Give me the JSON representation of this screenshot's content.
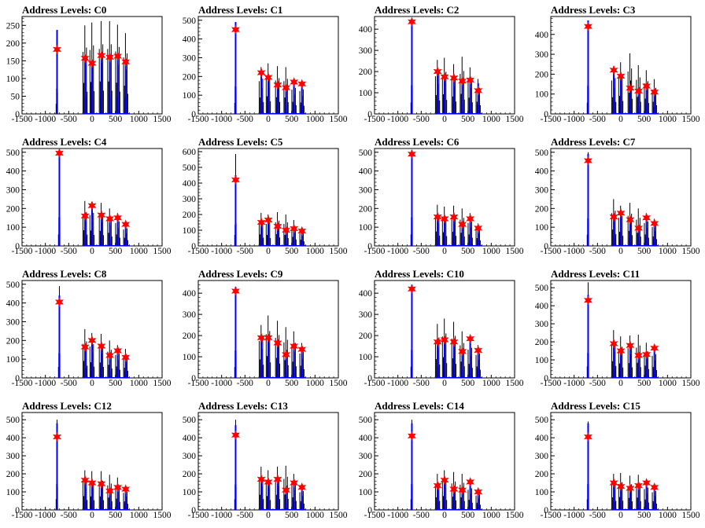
{
  "colors": {
    "raw_histogram": "#000000",
    "filtered_histogram": "#0000ff",
    "peak_marker": "#ff0000"
  },
  "chart_data": [
    {
      "type": "bar",
      "title": "Address Levels: C0",
      "xlim": [
        -1500,
        1500
      ],
      "ylim": [
        0,
        275
      ],
      "xticks": [
        -1500,
        -1000,
        -500,
        0,
        500,
        1000,
        1500
      ],
      "yticks": [
        0,
        50,
        100,
        150,
        200,
        250
      ],
      "peaks": [
        {
          "x": -750,
          "y": 182,
          "raw": 237,
          "blue": 237
        },
        {
          "x": -150,
          "y": 157,
          "raw": 250,
          "blue": 160
        },
        {
          "x": 0,
          "y": 143,
          "raw": 258,
          "blue": 145
        },
        {
          "x": 200,
          "y": 165,
          "raw": 262,
          "blue": 165
        },
        {
          "x": 380,
          "y": 160,
          "raw": 262,
          "blue": 160
        },
        {
          "x": 550,
          "y": 163,
          "raw": 252,
          "blue": 163
        },
        {
          "x": 720,
          "y": 147,
          "raw": 228,
          "blue": 150
        }
      ]
    },
    {
      "type": "bar",
      "title": "Address Levels: C1",
      "xlim": [
        -1500,
        1500
      ],
      "ylim": [
        0,
        520
      ],
      "xticks": [
        -1500,
        -1000,
        -500,
        0,
        500,
        1000,
        1500
      ],
      "yticks": [
        0,
        100,
        200,
        300,
        400,
        500
      ],
      "peaks": [
        {
          "x": -700,
          "y": 450,
          "raw": 490,
          "blue": 490
        },
        {
          "x": -150,
          "y": 220,
          "raw": 250,
          "blue": 230
        },
        {
          "x": 0,
          "y": 195,
          "raw": 270,
          "blue": 200
        },
        {
          "x": 200,
          "y": 155,
          "raw": 255,
          "blue": 160
        },
        {
          "x": 380,
          "y": 140,
          "raw": 250,
          "blue": 145
        },
        {
          "x": 550,
          "y": 170,
          "raw": 185,
          "blue": 175
        },
        {
          "x": 720,
          "y": 160,
          "raw": 175,
          "blue": 165
        }
      ]
    },
    {
      "type": "bar",
      "title": "Address Levels: C2",
      "xlim": [
        -1500,
        1500
      ],
      "ylim": [
        0,
        460
      ],
      "xticks": [
        -1500,
        -1000,
        -500,
        0,
        500,
        1000,
        1500
      ],
      "yticks": [
        0,
        100,
        200,
        300,
        400
      ],
      "peaks": [
        {
          "x": -700,
          "y": 435,
          "raw": 450,
          "blue": 450
        },
        {
          "x": -150,
          "y": 200,
          "raw": 255,
          "blue": 205
        },
        {
          "x": 0,
          "y": 175,
          "raw": 265,
          "blue": 180
        },
        {
          "x": 200,
          "y": 170,
          "raw": 235,
          "blue": 175
        },
        {
          "x": 380,
          "y": 155,
          "raw": 270,
          "blue": 160
        },
        {
          "x": 550,
          "y": 160,
          "raw": 220,
          "blue": 165
        },
        {
          "x": 720,
          "y": 110,
          "raw": 165,
          "blue": 145
        }
      ]
    },
    {
      "type": "bar",
      "title": "Address Levels: C3",
      "xlim": [
        -1500,
        1500
      ],
      "ylim": [
        0,
        490
      ],
      "xticks": [
        -1500,
        -1000,
        -500,
        0,
        500,
        1000,
        1500
      ],
      "yticks": [
        0,
        100,
        200,
        300,
        400
      ],
      "peaks": [
        {
          "x": -700,
          "y": 440,
          "raw": 470,
          "blue": 470
        },
        {
          "x": -150,
          "y": 220,
          "raw": 240,
          "blue": 225
        },
        {
          "x": 0,
          "y": 190,
          "raw": 260,
          "blue": 200
        },
        {
          "x": 200,
          "y": 130,
          "raw": 305,
          "blue": 140
        },
        {
          "x": 380,
          "y": 115,
          "raw": 245,
          "blue": 125
        },
        {
          "x": 550,
          "y": 140,
          "raw": 220,
          "blue": 145
        },
        {
          "x": 720,
          "y": 110,
          "raw": 175,
          "blue": 120
        }
      ]
    },
    {
      "type": "bar",
      "title": "Address Levels: C4",
      "xlim": [
        -1500,
        1500
      ],
      "ylim": [
        0,
        520
      ],
      "xticks": [
        -1500,
        -1000,
        -500,
        0,
        500,
        1000,
        1500
      ],
      "yticks": [
        0,
        100,
        200,
        300,
        400,
        500
      ],
      "peaks": [
        {
          "x": -700,
          "y": 495,
          "raw": 510,
          "blue": 510
        },
        {
          "x": -150,
          "y": 160,
          "raw": 240,
          "blue": 165
        },
        {
          "x": 0,
          "y": 215,
          "raw": 235,
          "blue": 220
        },
        {
          "x": 200,
          "y": 165,
          "raw": 230,
          "blue": 170
        },
        {
          "x": 380,
          "y": 145,
          "raw": 200,
          "blue": 150
        },
        {
          "x": 550,
          "y": 150,
          "raw": 175,
          "blue": 150
        },
        {
          "x": 720,
          "y": 115,
          "raw": 125,
          "blue": 120
        }
      ]
    },
    {
      "type": "bar",
      "title": "Address Levels: C5",
      "xlim": [
        -1500,
        1500
      ],
      "ylim": [
        0,
        620
      ],
      "xticks": [
        -1500,
        -1000,
        -500,
        0,
        500,
        1000,
        1500
      ],
      "yticks": [
        0,
        100,
        200,
        300,
        400,
        500,
        600
      ],
      "peaks": [
        {
          "x": -700,
          "y": 420,
          "raw": 585,
          "blue": 450
        },
        {
          "x": -150,
          "y": 150,
          "raw": 210,
          "blue": 155
        },
        {
          "x": 0,
          "y": 165,
          "raw": 200,
          "blue": 170
        },
        {
          "x": 200,
          "y": 125,
          "raw": 215,
          "blue": 130
        },
        {
          "x": 380,
          "y": 100,
          "raw": 200,
          "blue": 105
        },
        {
          "x": 550,
          "y": 110,
          "raw": 165,
          "blue": 115
        },
        {
          "x": 720,
          "y": 95,
          "raw": 115,
          "blue": 105
        }
      ]
    },
    {
      "type": "bar",
      "title": "Address Levels: C6",
      "xlim": [
        -1500,
        1500
      ],
      "ylim": [
        0,
        520
      ],
      "xticks": [
        -1500,
        -1000,
        -500,
        0,
        500,
        1000,
        1500
      ],
      "yticks": [
        0,
        100,
        200,
        300,
        400,
        500
      ],
      "peaks": [
        {
          "x": -700,
          "y": 490,
          "raw": 510,
          "blue": 510
        },
        {
          "x": -150,
          "y": 155,
          "raw": 220,
          "blue": 160
        },
        {
          "x": 0,
          "y": 145,
          "raw": 210,
          "blue": 150
        },
        {
          "x": 200,
          "y": 155,
          "raw": 215,
          "blue": 160
        },
        {
          "x": 380,
          "y": 115,
          "raw": 200,
          "blue": 120
        },
        {
          "x": 550,
          "y": 145,
          "raw": 175,
          "blue": 150
        },
        {
          "x": 720,
          "y": 95,
          "raw": 120,
          "blue": 105
        }
      ]
    },
    {
      "type": "bar",
      "title": "Address Levels: C7",
      "xlim": [
        -1500,
        1500
      ],
      "ylim": [
        0,
        520
      ],
      "xticks": [
        -1500,
        -1000,
        -500,
        0,
        500,
        1000,
        1500
      ],
      "yticks": [
        0,
        100,
        200,
        300,
        400,
        500
      ],
      "peaks": [
        {
          "x": -700,
          "y": 455,
          "raw": 500,
          "blue": 490
        },
        {
          "x": -150,
          "y": 155,
          "raw": 250,
          "blue": 160
        },
        {
          "x": 0,
          "y": 175,
          "raw": 215,
          "blue": 180
        },
        {
          "x": 200,
          "y": 140,
          "raw": 230,
          "blue": 145
        },
        {
          "x": 380,
          "y": 95,
          "raw": 200,
          "blue": 100
        },
        {
          "x": 550,
          "y": 150,
          "raw": 175,
          "blue": 155
        },
        {
          "x": 720,
          "y": 120,
          "raw": 145,
          "blue": 125
        }
      ]
    },
    {
      "type": "bar",
      "title": "Address Levels: C8",
      "xlim": [
        -1500,
        1500
      ],
      "ylim": [
        0,
        520
      ],
      "xticks": [
        -1500,
        -1000,
        -500,
        0,
        500,
        1000,
        1500
      ],
      "yticks": [
        0,
        100,
        200,
        300,
        400,
        500
      ],
      "peaks": [
        {
          "x": -700,
          "y": 405,
          "raw": 490,
          "blue": 440
        },
        {
          "x": -150,
          "y": 165,
          "raw": 260,
          "blue": 170
        },
        {
          "x": 0,
          "y": 200,
          "raw": 240,
          "blue": 205
        },
        {
          "x": 200,
          "y": 170,
          "raw": 235,
          "blue": 175
        },
        {
          "x": 380,
          "y": 120,
          "raw": 200,
          "blue": 125
        },
        {
          "x": 550,
          "y": 145,
          "raw": 175,
          "blue": 150
        },
        {
          "x": 720,
          "y": 110,
          "raw": 155,
          "blue": 115
        }
      ]
    },
    {
      "type": "bar",
      "title": "Address Levels: C9",
      "xlim": [
        -1500,
        1500
      ],
      "ylim": [
        0,
        460
      ],
      "xticks": [
        -1500,
        -1000,
        -500,
        0,
        500,
        1000,
        1500
      ],
      "yticks": [
        0,
        100,
        200,
        300,
        400
      ],
      "peaks": [
        {
          "x": -700,
          "y": 410,
          "raw": 430,
          "blue": 430
        },
        {
          "x": -150,
          "y": 190,
          "raw": 250,
          "blue": 195
        },
        {
          "x": 0,
          "y": 190,
          "raw": 295,
          "blue": 195
        },
        {
          "x": 200,
          "y": 165,
          "raw": 270,
          "blue": 170
        },
        {
          "x": 380,
          "y": 110,
          "raw": 240,
          "blue": 115
        },
        {
          "x": 550,
          "y": 150,
          "raw": 220,
          "blue": 155
        },
        {
          "x": 720,
          "y": 135,
          "raw": 165,
          "blue": 140
        }
      ]
    },
    {
      "type": "bar",
      "title": "Address Levels: C10",
      "xlim": [
        -1500,
        1500
      ],
      "ylim": [
        0,
        460
      ],
      "xticks": [
        -1500,
        -1000,
        -500,
        0,
        500,
        1000,
        1500
      ],
      "yticks": [
        0,
        100,
        200,
        300,
        400
      ],
      "peaks": [
        {
          "x": -700,
          "y": 420,
          "raw": 440,
          "blue": 440
        },
        {
          "x": -150,
          "y": 170,
          "raw": 255,
          "blue": 175
        },
        {
          "x": 0,
          "y": 180,
          "raw": 280,
          "blue": 185
        },
        {
          "x": 200,
          "y": 170,
          "raw": 265,
          "blue": 175
        },
        {
          "x": 380,
          "y": 125,
          "raw": 220,
          "blue": 130
        },
        {
          "x": 550,
          "y": 185,
          "raw": 190,
          "blue": 190
        },
        {
          "x": 720,
          "y": 130,
          "raw": 155,
          "blue": 140
        }
      ]
    },
    {
      "type": "bar",
      "title": "Address Levels: C11",
      "xlim": [
        -1500,
        1500
      ],
      "ylim": [
        0,
        540
      ],
      "xticks": [
        -1500,
        -1000,
        -500,
        0,
        500,
        1000,
        1500
      ],
      "yticks": [
        0,
        100,
        200,
        300,
        400,
        500
      ],
      "peaks": [
        {
          "x": -700,
          "y": 430,
          "raw": 530,
          "blue": 460
        },
        {
          "x": -150,
          "y": 190,
          "raw": 265,
          "blue": 195
        },
        {
          "x": 0,
          "y": 150,
          "raw": 230,
          "blue": 155
        },
        {
          "x": 200,
          "y": 180,
          "raw": 235,
          "blue": 185
        },
        {
          "x": 380,
          "y": 125,
          "raw": 240,
          "blue": 130
        },
        {
          "x": 550,
          "y": 130,
          "raw": 195,
          "blue": 135
        },
        {
          "x": 720,
          "y": 165,
          "raw": 175,
          "blue": 170
        }
      ]
    },
    {
      "type": "bar",
      "title": "Address Levels: C12",
      "xlim": [
        -1500,
        1500
      ],
      "ylim": [
        0,
        540
      ],
      "xticks": [
        -1500,
        -1000,
        -500,
        0,
        500,
        1000,
        1500
      ],
      "yticks": [
        0,
        100,
        200,
        300,
        400,
        500
      ],
      "peaks": [
        {
          "x": -750,
          "y": 405,
          "raw": 500,
          "blue": 480
        },
        {
          "x": -150,
          "y": 165,
          "raw": 220,
          "blue": 170
        },
        {
          "x": 0,
          "y": 150,
          "raw": 215,
          "blue": 155
        },
        {
          "x": 200,
          "y": 145,
          "raw": 215,
          "blue": 150
        },
        {
          "x": 380,
          "y": 105,
          "raw": 195,
          "blue": 110
        },
        {
          "x": 550,
          "y": 125,
          "raw": 180,
          "blue": 130
        },
        {
          "x": 720,
          "y": 115,
          "raw": 135,
          "blue": 125
        }
      ]
    },
    {
      "type": "bar",
      "title": "Address Levels: C13",
      "xlim": [
        -1500,
        1500
      ],
      "ylim": [
        0,
        540
      ],
      "xticks": [
        -1500,
        -1000,
        -500,
        0,
        500,
        1000,
        1500
      ],
      "yticks": [
        0,
        100,
        200,
        300,
        400,
        500
      ],
      "peaks": [
        {
          "x": -700,
          "y": 415,
          "raw": 500,
          "blue": 470
        },
        {
          "x": -150,
          "y": 170,
          "raw": 240,
          "blue": 175
        },
        {
          "x": 0,
          "y": 155,
          "raw": 220,
          "blue": 160
        },
        {
          "x": 200,
          "y": 170,
          "raw": 240,
          "blue": 175
        },
        {
          "x": 380,
          "y": 110,
          "raw": 245,
          "blue": 115
        },
        {
          "x": 550,
          "y": 150,
          "raw": 200,
          "blue": 155
        },
        {
          "x": 720,
          "y": 125,
          "raw": 140,
          "blue": 130
        }
      ]
    },
    {
      "type": "bar",
      "title": "Address Levels: C14",
      "xlim": [
        -1500,
        1500
      ],
      "ylim": [
        0,
        540
      ],
      "xticks": [
        -1500,
        -1000,
        -500,
        0,
        500,
        1000,
        1500
      ],
      "yticks": [
        0,
        100,
        200,
        300,
        400,
        500
      ],
      "peaks": [
        {
          "x": -700,
          "y": 410,
          "raw": 500,
          "blue": 480
        },
        {
          "x": -150,
          "y": 135,
          "raw": 200,
          "blue": 140
        },
        {
          "x": 0,
          "y": 165,
          "raw": 220,
          "blue": 170
        },
        {
          "x": 200,
          "y": 115,
          "raw": 210,
          "blue": 120
        },
        {
          "x": 380,
          "y": 110,
          "raw": 200,
          "blue": 115
        },
        {
          "x": 550,
          "y": 155,
          "raw": 160,
          "blue": 160
        },
        {
          "x": 720,
          "y": 100,
          "raw": 115,
          "blue": 105
        }
      ]
    },
    {
      "type": "bar",
      "title": "Address Levels: C15",
      "xlim": [
        -1500,
        1500
      ],
      "ylim": [
        0,
        540
      ],
      "xticks": [
        -1500,
        -1000,
        -500,
        0,
        500,
        1000,
        1500
      ],
      "yticks": [
        0,
        100,
        200,
        300,
        400,
        500
      ],
      "peaks": [
        {
          "x": -700,
          "y": 405,
          "raw": 490,
          "blue": 480
        },
        {
          "x": -150,
          "y": 150,
          "raw": 200,
          "blue": 155
        },
        {
          "x": 0,
          "y": 130,
          "raw": 205,
          "blue": 135
        },
        {
          "x": 200,
          "y": 120,
          "raw": 190,
          "blue": 125
        },
        {
          "x": 380,
          "y": 135,
          "raw": 195,
          "blue": 140
        },
        {
          "x": 550,
          "y": 150,
          "raw": 165,
          "blue": 155
        },
        {
          "x": 720,
          "y": 125,
          "raw": 140,
          "blue": 130
        }
      ]
    }
  ]
}
